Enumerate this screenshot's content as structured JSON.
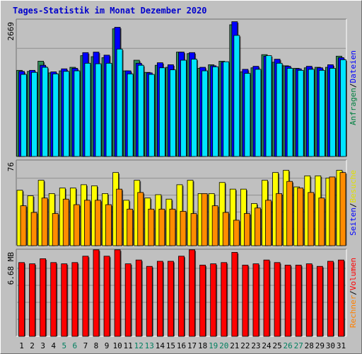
{
  "colors": {
    "background": "#c0c0c0",
    "weekday_label": "#000000",
    "weekend_label": "#007f5f",
    "dark_frame": "#707070",
    "light_frame": "#ffffff",
    "gridline": "#8f8f8f"
  },
  "chart_data": {
    "type": "bar",
    "title": "Tages-Statistik im Monat Dezember 2020",
    "categories": [
      "1",
      "2",
      "3",
      "4",
      "5",
      "6",
      "7",
      "8",
      "9",
      "10",
      "11",
      "12",
      "13",
      "14",
      "15",
      "16",
      "17",
      "18",
      "19",
      "20",
      "21",
      "22",
      "23",
      "24",
      "25",
      "26",
      "27",
      "28",
      "29",
      "30",
      "31"
    ],
    "weekend_days": [
      "5",
      "6",
      "12",
      "13",
      "19",
      "20",
      "26",
      "27"
    ],
    "panels": [
      {
        "id": "top",
        "ymax_label": "2669",
        "ymax": 2669,
        "legend": [
          {
            "text": "Anfragen",
            "color": "#008040"
          },
          {
            "text": "/",
            "color": "#000000"
          },
          {
            "text": "Dateien",
            "color": "#0000ff"
          }
        ],
        "series": [
          {
            "name": "Anfragen",
            "color": "#2e8b57",
            "values": [
              1700,
              1680,
              1880,
              1650,
              1690,
              1760,
              1990,
              1970,
              1950,
              2520,
              1690,
              1900,
              1660,
              1800,
              1760,
              2060,
              2030,
              1740,
              1810,
              1880,
              2600,
              1670,
              1750,
              2010,
              1860,
              1790,
              1740,
              1750,
              1760,
              1760,
              1980
            ]
          },
          {
            "name": "Dateien",
            "color": "#0000ff",
            "values": [
              1680,
              1700,
              1800,
              1670,
              1730,
              1740,
              2050,
              2060,
              2000,
              2550,
              1690,
              1840,
              1650,
              1850,
              1810,
              2060,
              2050,
              1760,
              1790,
              1860,
              2660,
              1720,
              1780,
              1980,
              1920,
              1780,
              1730,
              1780,
              1750,
              1810,
              1950
            ]
          },
          {
            "name": "Seiten",
            "color": "#00e5ff",
            "values": [
              1620,
              1660,
              1760,
              1630,
              1680,
              1690,
              1840,
              1830,
              1840,
              2120,
              1630,
              1800,
              1620,
              1750,
              1710,
              1900,
              1920,
              1690,
              1770,
              1870,
              2390,
              1640,
              1720,
              1990,
              1840,
              1740,
              1700,
              1720,
              1700,
              1740,
              1910
            ]
          }
        ]
      },
      {
        "id": "middle",
        "ymax_label": "76",
        "ymax": 76,
        "legend": [
          {
            "text": "Seiten",
            "color": "#0000ff"
          },
          {
            "text": "/",
            "color": "#000000"
          },
          {
            "text": "Besuche",
            "color": "#e0e000"
          }
        ],
        "series": [
          {
            "name": "Besuche",
            "color": "#ffff00",
            "values": [
              50,
              45,
              59,
              47,
              52,
              52,
              55,
              54,
              47,
              66,
              41,
              59,
              43,
              46,
              42,
              55,
              59,
              47,
              47,
              57,
              51,
              51,
              38,
              59,
              66,
              68,
              53,
              63,
              63,
              61,
              68
            ]
          },
          {
            "name": "Dateien",
            "color": "#ff8c00",
            "values": [
              36,
              30,
              43,
              29,
              42,
              37,
              41,
              41,
              37,
              51,
              33,
              48,
              33,
              33,
              33,
              31,
              29,
              47,
              36,
              30,
              23,
              29,
              34,
              41,
              47,
              58,
              52,
              48,
              43,
              62,
              66
            ]
          }
        ]
      },
      {
        "id": "bottom",
        "ymax_label": "6.68 MB",
        "ymax": 6.68,
        "legend": [
          {
            "text": "Rechner",
            "color": "#ff8000"
          },
          {
            "text": "/",
            "color": "#000000"
          },
          {
            "text": "Volumen",
            "color": "#ff0000"
          }
        ],
        "series": [
          {
            "name": "Volumen",
            "color": "#ff0000",
            "values": [
              5.8,
              5.7,
              6.1,
              5.8,
              5.7,
              5.8,
              6.3,
              6.8,
              6.3,
              6.8,
              5.7,
              6.0,
              5.5,
              5.9,
              5.9,
              6.3,
              6.8,
              5.6,
              5.7,
              5.8,
              6.6,
              5.6,
              5.7,
              6.0,
              5.8,
              5.6,
              5.6,
              5.7,
              5.5,
              5.9,
              6.0
            ]
          }
        ]
      }
    ]
  }
}
